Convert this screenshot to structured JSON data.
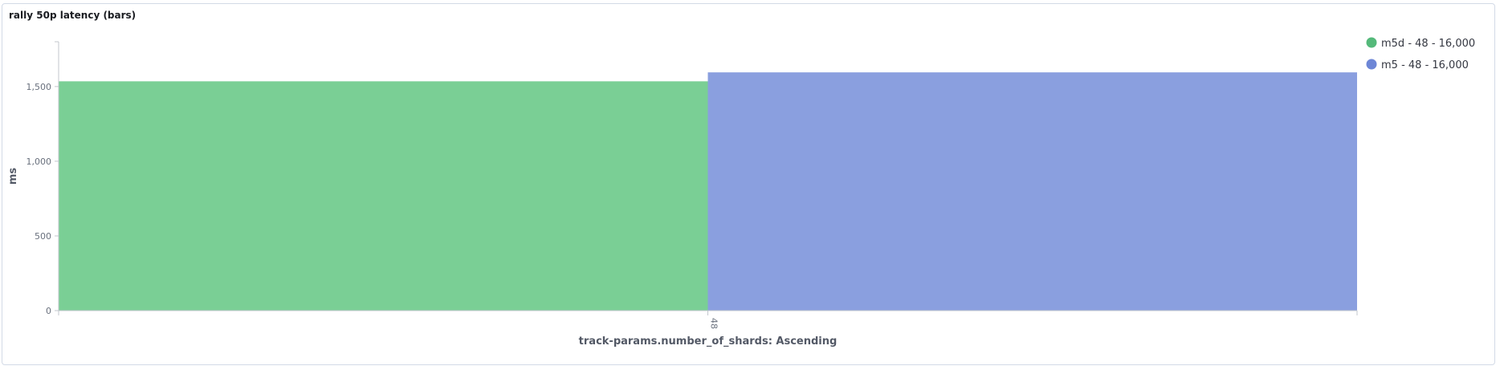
{
  "panel": {
    "title": "rally 50p latency (bars)"
  },
  "chart_data": {
    "type": "bar",
    "categories": [
      "48"
    ],
    "series": [
      {
        "name": "m5d - 48 - 16,000",
        "values": [
          1535
        ],
        "color": "#7acf95"
      },
      {
        "name": "m5 - 48 - 16,000",
        "values": [
          1595
        ],
        "color": "#8a9fdf"
      }
    ],
    "title": "rally 50p latency (bars)",
    "xlabel": "track-params.number_of_shards: Ascending",
    "ylabel": "ms",
    "ylim": [
      0,
      1800
    ],
    "yticks": [
      0,
      500,
      1000,
      1500
    ],
    "ytick_labels": [
      "0",
      "500",
      "1,000",
      "1,500"
    ],
    "grid": false,
    "legend_position": "top-right"
  }
}
